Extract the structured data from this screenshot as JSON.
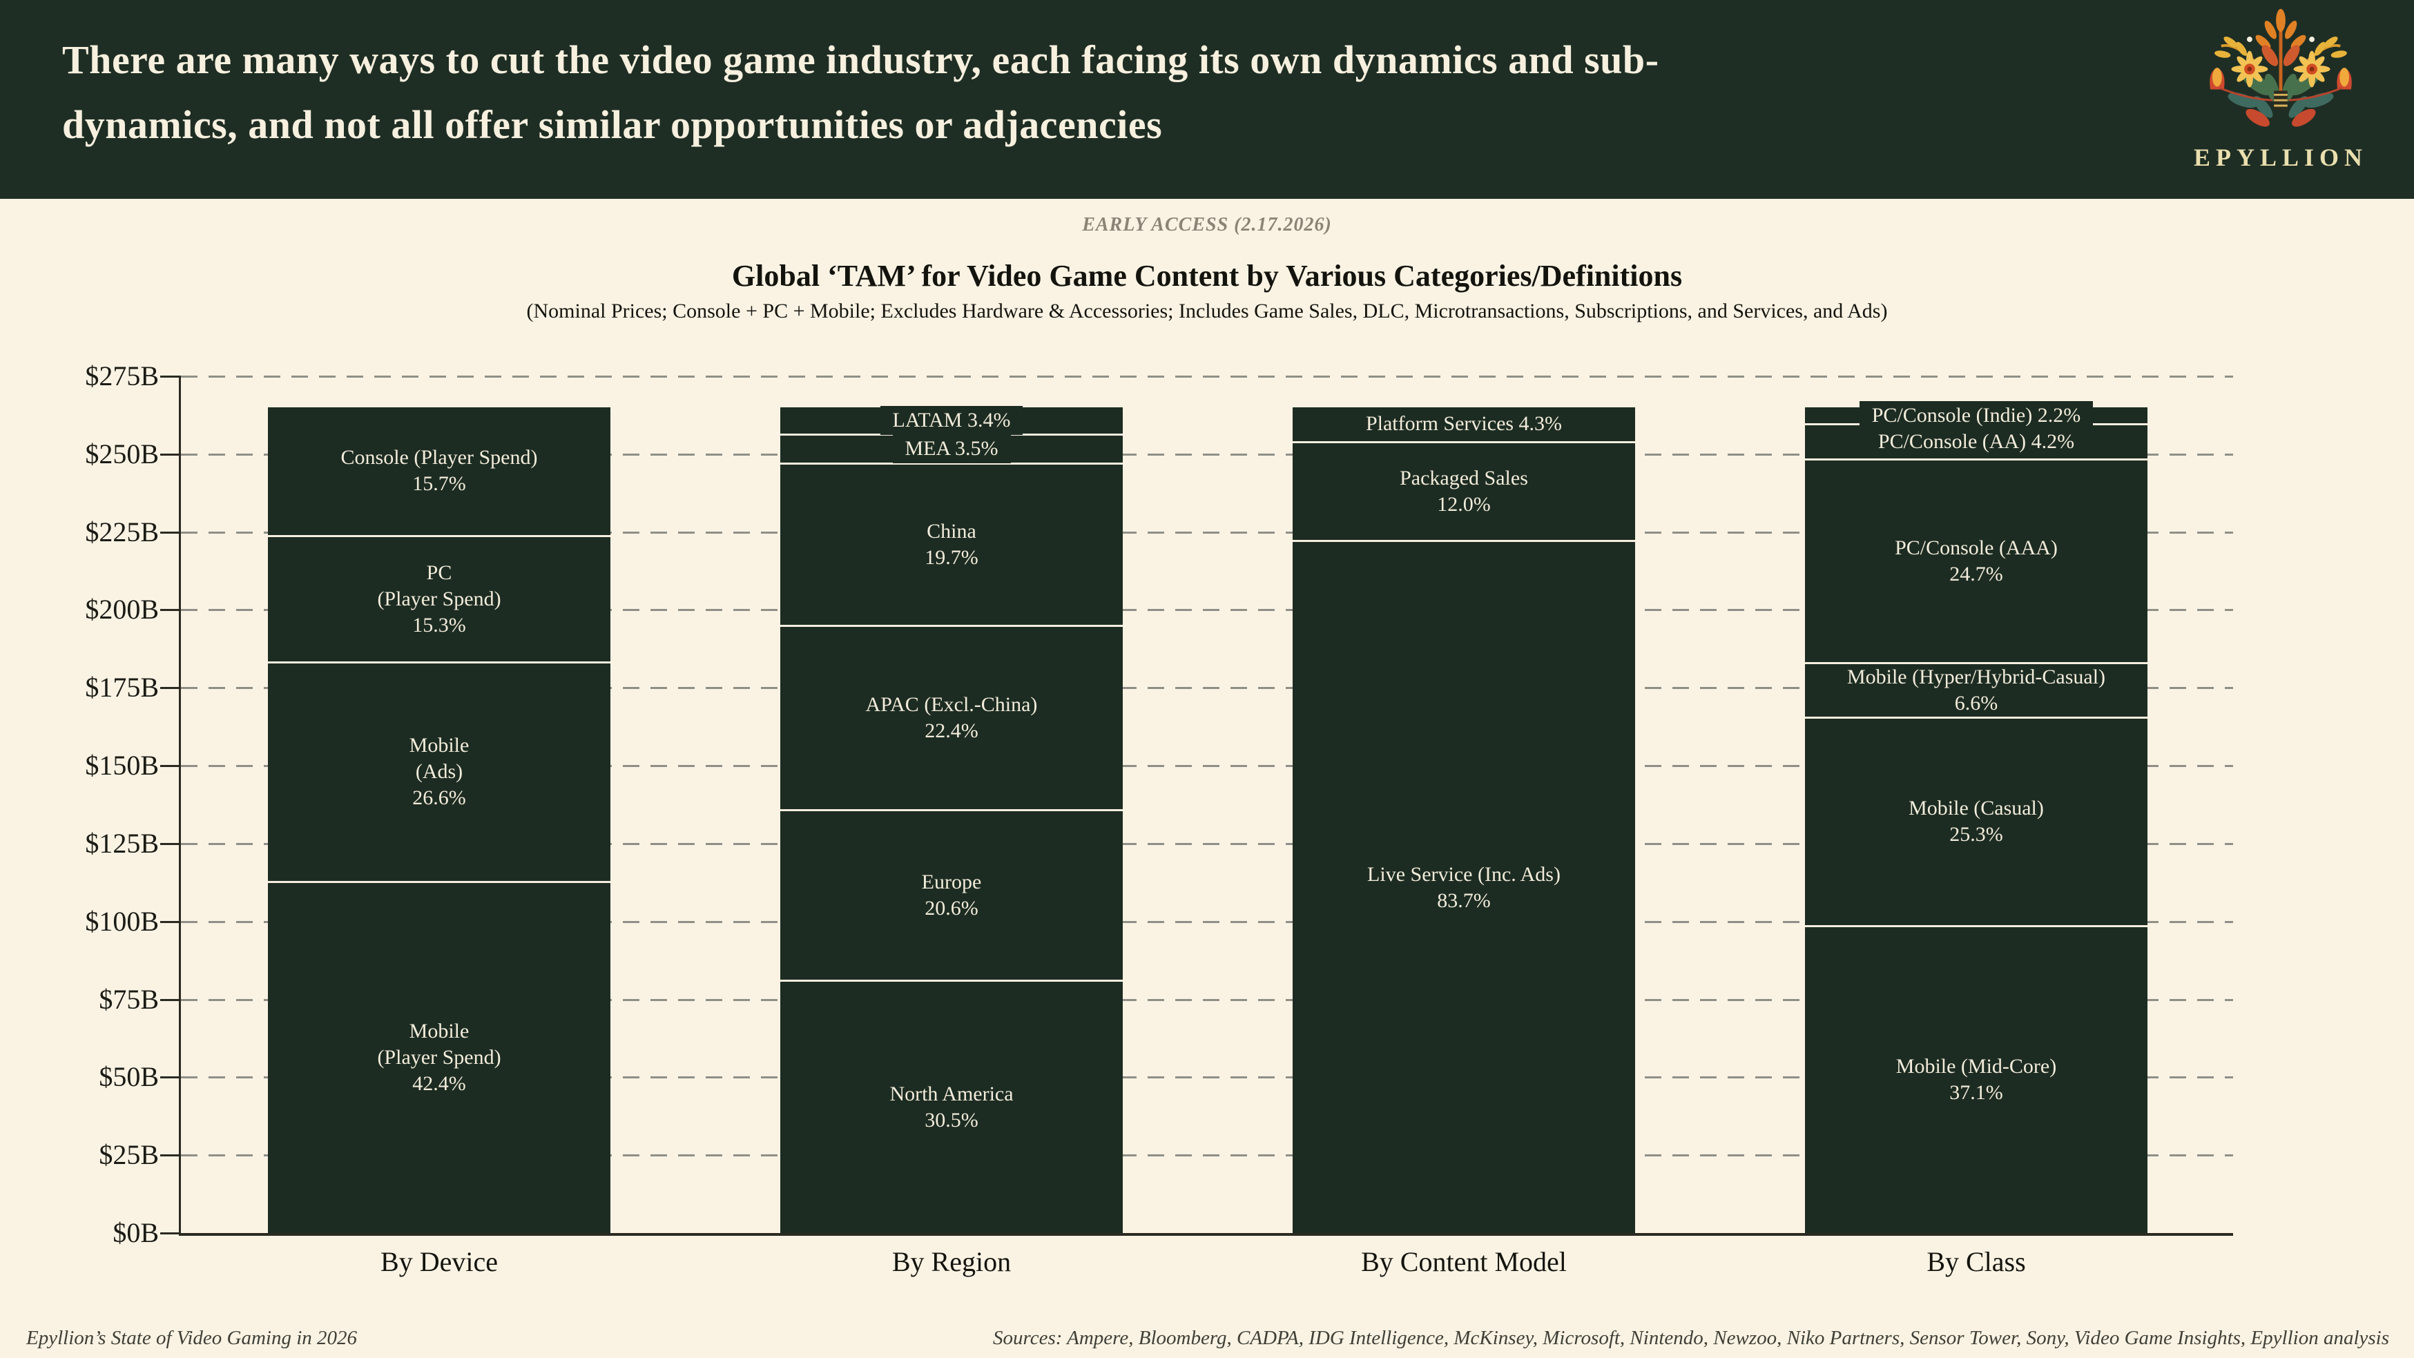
{
  "header": {
    "title_lines": [
      "There are many ways to cut the video game industry, each facing its own dynamics and sub-",
      "dynamics, and not all offer similar opportunities or adjacencies"
    ],
    "logo_text": "EPYLLION"
  },
  "meta": {
    "early_access": "EARLY ACCESS (2.17.2026)",
    "footer_left": "Epyllion’s State of Video Gaming in 2026",
    "footer_right": "Sources: Ampere, Bloomberg, CADPA, IDG Intelligence, McKinsey, Microsoft, Nintendo, Newzoo, Niko Partners, Sensor Tower, Sony, Video Game Insights, Epyllion analysis"
  },
  "chart_data": {
    "type": "bar",
    "stacked": true,
    "title": "Global ‘TAM’ for Video Game Content by Various Categories/Definitions",
    "subtitle": "(Nominal Prices; Console + PC + Mobile; Excludes Hardware & Accessories; Includes Game Sales, DLC, Microtransactions, Subscriptions, and Services, and Ads)",
    "unit": "USD billions",
    "total_value_billion_est": 265,
    "ylim": [
      0,
      275
    ],
    "y_tick_step": 25,
    "y_tick_labels": [
      "$0B",
      "$25B",
      "$50B",
      "$75B",
      "$100B",
      "$125B",
      "$150B",
      "$175B",
      "$200B",
      "$225B",
      "$250B",
      "$275B"
    ],
    "grid": "dashed horizontal gridlines",
    "legend": "none (labels inside segments)",
    "categories": [
      "By Device",
      "By Region",
      "By Content Model",
      "By Class"
    ],
    "bars": [
      {
        "category": "By Device",
        "segments": [
          {
            "name": "Mobile (Player Spend)",
            "pct": 42.4,
            "label_lines": [
              "Mobile",
              "(Player Spend)",
              "42.4%"
            ]
          },
          {
            "name": "Mobile (Ads)",
            "pct": 26.6,
            "label_lines": [
              "Mobile",
              "(Ads)",
              "26.6%"
            ]
          },
          {
            "name": "PC (Player Spend)",
            "pct": 15.3,
            "label_lines": [
              "PC",
              "(Player Spend)",
              "15.3%"
            ]
          },
          {
            "name": "Console (Player Spend)",
            "pct": 15.7,
            "label_lines": [
              "Console (Player Spend)",
              "15.7%"
            ]
          }
        ]
      },
      {
        "category": "By Region",
        "segments": [
          {
            "name": "North America",
            "pct": 30.5,
            "label_lines": [
              "North America",
              "30.5%"
            ]
          },
          {
            "name": "Europe",
            "pct": 20.6,
            "label_lines": [
              "Europe",
              "20.6%"
            ]
          },
          {
            "name": "APAC (Excl.-China)",
            "pct": 22.4,
            "label_lines": [
              "APAC (Excl.-China)",
              "22.4%"
            ]
          },
          {
            "name": "China",
            "pct": 19.7,
            "label_lines": [
              "China",
              "19.7%"
            ]
          },
          {
            "name": "MEA",
            "pct": 3.5,
            "label_lines": [
              "MEA 3.5%"
            ]
          },
          {
            "name": "LATAM",
            "pct": 3.4,
            "label_lines": [
              "LATAM 3.4%"
            ]
          }
        ]
      },
      {
        "category": "By Content Model",
        "segments": [
          {
            "name": "Live Service (Inc. Ads)",
            "pct": 83.7,
            "label_lines": [
              "Live Service (Inc. Ads)",
              "83.7%"
            ]
          },
          {
            "name": "Packaged Sales",
            "pct": 12.0,
            "label_lines": [
              "Packaged Sales",
              "12.0%"
            ]
          },
          {
            "name": "Platform Services",
            "pct": 4.3,
            "label_lines": [
              "Platform Services 4.3%"
            ]
          }
        ]
      },
      {
        "category": "By Class",
        "segments": [
          {
            "name": "Mobile (Mid-Core)",
            "pct": 37.1,
            "label_lines": [
              "Mobile (Mid-Core)",
              "37.1%"
            ]
          },
          {
            "name": "Mobile (Casual)",
            "pct": 25.3,
            "label_lines": [
              "Mobile (Casual)",
              "25.3%"
            ]
          },
          {
            "name": "Mobile (Hyper/Hybrid-Casual)",
            "pct": 6.6,
            "label_lines": [
              "Mobile (Hyper/Hybrid-Casual)",
              "6.6%"
            ]
          },
          {
            "name": "PC/Console (AAA)",
            "pct": 24.7,
            "label_lines": [
              "PC/Console (AAA)",
              "24.7%"
            ]
          },
          {
            "name": "PC/Console (AA)",
            "pct": 4.2,
            "label_lines": [
              "PC/Console (AA) 4.2%"
            ]
          },
          {
            "name": "PC/Console (Indie)",
            "pct": 2.2,
            "label_lines": [
              "PC/Console (Indie) 2.2%"
            ]
          }
        ]
      }
    ],
    "colors": {
      "header_bg": "#1f2e24",
      "page_bg": "#faf3e4",
      "bar": "#1d2c22",
      "segment_separator": "#f6efe0",
      "bar_label_text": "#f2ecdb",
      "gridline": "#8f8f87",
      "axis": "#2a2a22",
      "logo_text_color": "#eadfae"
    }
  }
}
